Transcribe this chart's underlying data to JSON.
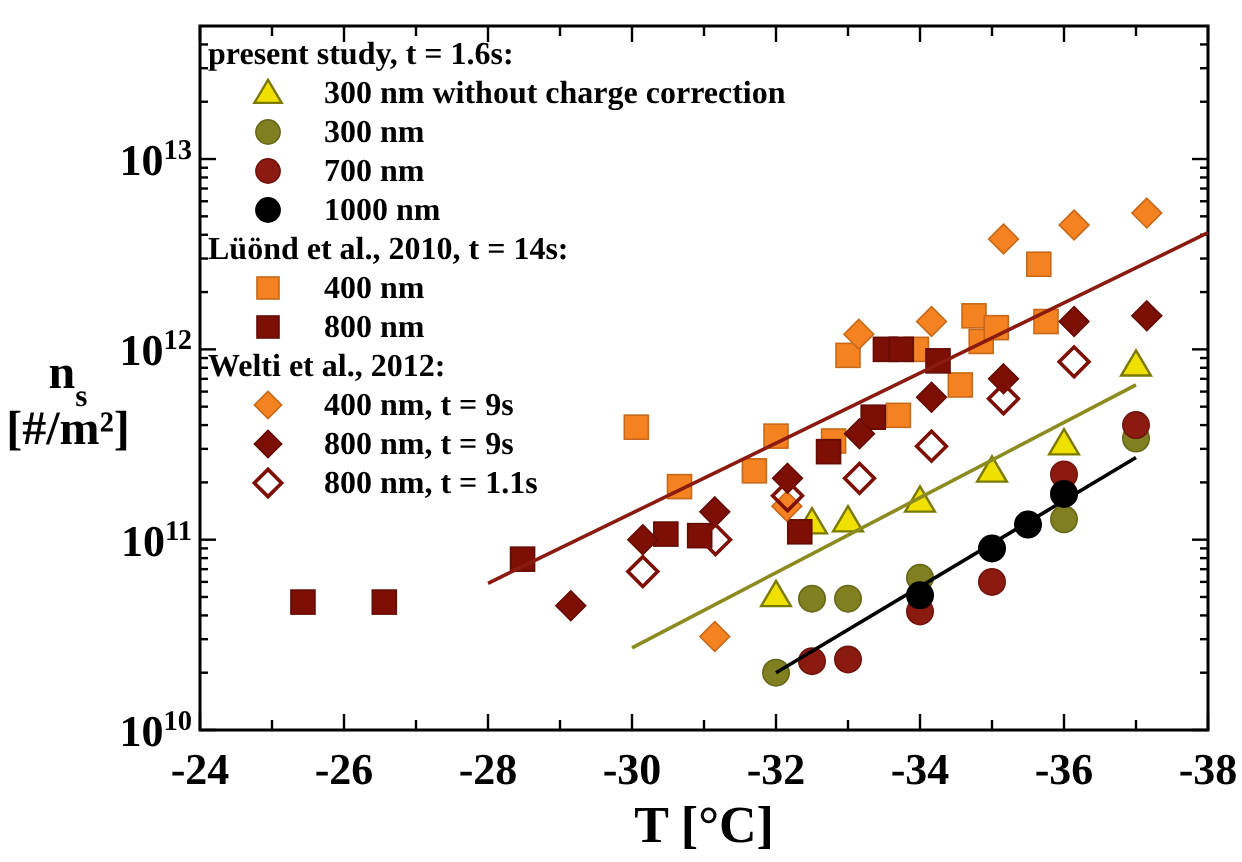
{
  "chart_data": {
    "type": "scatter",
    "xlabel": "T [°C]",
    "ylabel": "n$_{s}$ [#/m²]",
    "log": "y",
    "xlim": [
      -24,
      -38
    ],
    "ylim": [
      10000000000.0,
      50000000000000.0
    ],
    "xticks": [
      -24,
      {
        "value": -25,
        "label": null
      },
      -26,
      {
        "value": -27,
        "label": null
      },
      -28,
      {
        "value": -29,
        "label": null
      },
      -30,
      {
        "value": -31,
        "label": null
      },
      -32,
      {
        "value": -33,
        "label": null
      },
      -34,
      {
        "value": -35,
        "label": null
      },
      -36,
      {
        "value": -37,
        "label": null
      },
      -38
    ],
    "yticks": [
      {
        "value": 10000000000.0,
        "label": "10$^{10}$"
      },
      {
        "value": 20000000000.0,
        "label": null
      },
      {
        "value": 30000000000.0,
        "label": null
      },
      {
        "value": 40000000000.0,
        "label": null
      },
      {
        "value": 50000000000.0,
        "label": null
      },
      {
        "value": 60000000000.0,
        "label": null
      },
      {
        "value": 70000000000.0,
        "label": null
      },
      {
        "value": 80000000000.0,
        "label": null
      },
      {
        "value": 90000000000.0,
        "label": null
      },
      {
        "value": 100000000000.0,
        "label": "10$^{11}$"
      },
      {
        "value": 200000000000.0,
        "label": null
      },
      {
        "value": 300000000000.0,
        "label": null
      },
      {
        "value": 400000000000.0,
        "label": null
      },
      {
        "value": 500000000000.0,
        "label": null
      },
      {
        "value": 600000000000.0,
        "label": null
      },
      {
        "value": 700000000000.0,
        "label": null
      },
      {
        "value": 800000000000.0,
        "label": null
      },
      {
        "value": 900000000000.0,
        "label": null
      },
      {
        "value": 1000000000000.0,
        "label": "10$^{12}$"
      },
      {
        "value": 2000000000000.0,
        "label": null
      },
      {
        "value": 3000000000000.0,
        "label": null
      },
      {
        "value": 4000000000000.0,
        "label": null
      },
      {
        "value": 5000000000000.0,
        "label": null
      },
      {
        "value": 6000000000000.0,
        "label": null
      },
      {
        "value": 7000000000000.0,
        "label": null
      },
      {
        "value": 8000000000000.0,
        "label": null
      },
      {
        "value": 9000000000000.0,
        "label": null
      },
      {
        "value": 10000000000000.0,
        "label": "10$^{13}$"
      },
      {
        "value": 20000000000000.0,
        "label": null
      },
      {
        "value": 30000000000000.0,
        "label": null
      },
      {
        "value": 40000000000000.0,
        "label": null
      }
    ],
    "legend": "top left",
    "grid": false,
    "annotations": [
      "present study, t = 1.6s:",
      "Lüönd et al., 2010, t = 14s:",
      "Welti et al., 2012:"
    ],
    "series": [
      {
        "name": "300 nm without charge correction",
        "marker": "triangle",
        "color": "#f0e000",
        "x": [
          -37,
          -36,
          -35,
          -34,
          -33,
          -32.5,
          -32
        ],
        "values": [
          830000000000.0,
          320000000000.0,
          230000000000.0,
          160000000000.0,
          126000000000.0,
          123000000000.0,
          51000000000.0
        ]
      },
      {
        "name": "300 nm",
        "marker": "circle",
        "color": "#808020",
        "x": [
          -37,
          -36,
          -34,
          -33,
          -32.5,
          -32
        ],
        "values": [
          340000000000.0,
          128000000000.0,
          63000000000.0,
          49000000000.0,
          49000000000.0,
          20000000000.0
        ]
      },
      {
        "name": "700 nm",
        "marker": "circle",
        "color": "#8b1a10",
        "x": [
          -37,
          -36,
          -35,
          -34,
          -33,
          -32.5
        ],
        "values": [
          400000000000.0,
          220000000000.0,
          60000000000.0,
          42000000000.0,
          23500000000.0,
          23000000000.0
        ]
      },
      {
        "name": "1000 nm",
        "marker": "circle",
        "color": "#000000",
        "x": [
          -36,
          -35.5,
          -35,
          -34
        ],
        "values": [
          174000000000.0,
          120000000000.0,
          90000000000.0,
          51000000000.0
        ]
      },
      {
        "name": "400 nm",
        "marker": "square",
        "color": "#f58220",
        "x": [
          -33.0,
          -33.95,
          -34.75,
          -34.85,
          -35.06,
          -35.65,
          -35.75,
          -34.56,
          -30.06,
          -30.66,
          -32.0,
          -31.7,
          -32.8,
          -33.7
        ],
        "values": [
          930000000000.0,
          1000000000000.0,
          1500000000000.0,
          1100000000000.0,
          1300000000000.0,
          2800000000000.0,
          1400000000000.0,
          650000000000.0,
          390000000000.0,
          190000000000.0,
          350000000000.0,
          230000000000.0,
          330000000000.0,
          450000000000.0
        ]
      },
      {
        "name": "800 nm",
        "marker": "square",
        "color": "#7d0f05",
        "x": [
          -33.52,
          -33.74,
          -34.25,
          -33.35,
          -32.73,
          -32.33,
          -30.47,
          -30.94,
          -28.48,
          -25.43,
          -26.56
        ],
        "values": [
          1000000000000.0,
          1000000000000.0,
          870000000000.0,
          440000000000.0,
          290000000000.0,
          110000000000.0,
          107000000000.0,
          105000000000.0,
          79000000000.0,
          47000000000.0,
          47000000000.0
        ]
      },
      {
        "name": "400 nm, t = 9s",
        "marker": "diamond",
        "color": "#f58220",
        "x": [
          -33.15,
          -34.16,
          -35.16,
          -36.14,
          -37.15,
          -32.15,
          -31.15
        ],
        "values": [
          1200000000000.0,
          1400000000000.0,
          3800000000000.0,
          4500000000000.0,
          5200000000000.0,
          150000000000.0,
          31000000000.0
        ]
      },
      {
        "name": "800 nm, t = 9s",
        "marker": "diamond",
        "color": "#7d0f05",
        "x": [
          -36.14,
          -37.15,
          -35.16,
          -34.16,
          -33.16,
          -32.16,
          -31.15,
          -30.15,
          -29.15
        ],
        "values": [
          1400000000000.0,
          1500000000000.0,
          700000000000.0,
          560000000000.0,
          360000000000.0,
          210000000000.0,
          140000000000.0,
          100000000000.0,
          45000000000.0
        ]
      },
      {
        "name": "800 nm, t = 1.1s",
        "marker": "diamond-open",
        "color": "#7d0f05",
        "x": [
          -36.14,
          -35.16,
          -34.16,
          -33.16,
          -32.16,
          -31.16,
          -30.15
        ],
        "values": [
          860000000000.0,
          550000000000.0,
          310000000000.0,
          210000000000.0,
          170000000000.0,
          100000000000.0,
          68000000000.0
        ]
      },
      {
        "type": "line",
        "color": "#8b1a10",
        "x": [
          -28,
          -38
        ],
        "values": [
          59000000000.0,
          4100000000000.0
        ]
      },
      {
        "type": "line",
        "color": "#8b8b20",
        "x": [
          -30,
          -37
        ],
        "values": [
          27000000000.0,
          650000000000.0
        ]
      },
      {
        "type": "line",
        "color": "#000000",
        "x": [
          -32,
          -37
        ],
        "values": [
          20000000000.0,
          270000000000.0
        ]
      }
    ]
  }
}
